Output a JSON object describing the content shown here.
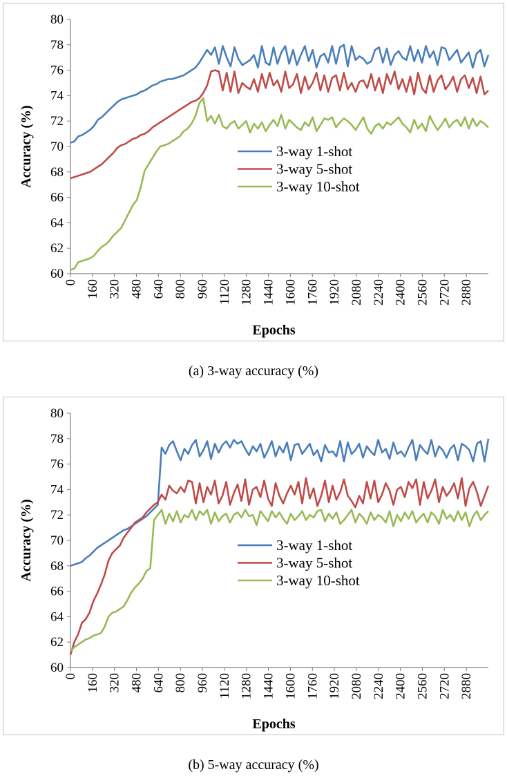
{
  "chart_data": [
    {
      "id": "a",
      "type": "line",
      "caption": "(a)  3-way accuracy (%)",
      "xlabel": "Epochs",
      "ylabel": "Accuracy (%)",
      "ylim": [
        60,
        80
      ],
      "yticks": [
        "60",
        "62",
        "64",
        "66",
        "68",
        "70",
        "72",
        "74",
        "76",
        "78",
        "80"
      ],
      "xlim": [
        0,
        3040
      ],
      "xticks": [
        "0",
        "160",
        "320",
        "480",
        "640",
        "800",
        "960",
        "1120",
        "1280",
        "1440",
        "1600",
        "1760",
        "1920",
        "2080",
        "2240",
        "2400",
        "2560",
        "2720",
        "2880"
      ],
      "grid": "none",
      "legend": "center-right",
      "series": [
        {
          "name": "3-way 1-shot",
          "color": "#4a7ebb",
          "values": [
            70.3,
            70.4,
            70.8,
            70.9,
            71.1,
            71.3,
            71.6,
            72.1,
            72.3,
            72.6,
            72.9,
            73.2,
            73.5,
            73.7,
            73.8,
            73.9,
            74.0,
            74.1,
            74.3,
            74.4,
            74.6,
            74.8,
            74.9,
            75.1,
            75.2,
            75.3,
            75.3,
            75.4,
            75.5,
            75.6,
            75.8,
            76.0,
            76.2,
            76.6,
            77.1,
            77.6,
            77.2,
            77.8,
            76.5,
            77.9,
            77.0,
            76.3,
            77.8,
            76.9,
            76.4,
            76.6,
            76.8,
            77.2,
            76.2,
            77.9,
            76.6,
            76.4,
            77.8,
            76.5,
            77.4,
            77.9,
            76.5,
            77.6,
            76.4,
            77.2,
            77.9,
            76.7,
            77.6,
            76.2,
            77.1,
            77.3,
            76.6,
            77.9,
            76.5,
            77.8,
            78.0,
            76.3,
            77.9,
            76.8,
            77.1,
            76.9,
            76.5,
            76.7,
            77.6,
            77.8,
            76.6,
            77.7,
            76.4,
            77.2,
            77.5,
            77.0,
            76.8,
            77.9,
            76.7,
            77.6,
            76.6,
            77.9,
            77.0,
            77.5,
            76.4,
            77.8,
            77.7,
            76.8,
            77.2,
            77.6,
            76.6,
            77.0,
            77.4,
            76.2,
            77.3,
            77.6,
            76.3,
            77.2
          ]
        },
        {
          "name": "3-way 5-shot",
          "color": "#be4b48",
          "values": [
            67.5,
            67.6,
            67.7,
            67.8,
            67.9,
            68.0,
            68.2,
            68.4,
            68.6,
            68.9,
            69.2,
            69.5,
            69.9,
            70.1,
            70.2,
            70.4,
            70.6,
            70.7,
            70.9,
            71.0,
            71.2,
            71.5,
            71.7,
            71.9,
            72.1,
            72.3,
            72.5,
            72.7,
            72.9,
            73.1,
            73.3,
            73.5,
            73.6,
            73.8,
            74.2,
            74.8,
            75.9,
            76.0,
            75.9,
            74.4,
            75.8,
            74.3,
            75.9,
            74.2,
            75.0,
            74.7,
            74.5,
            75.3,
            74.3,
            75.7,
            74.6,
            75.8,
            74.8,
            75.2,
            74.3,
            75.9,
            74.6,
            74.9,
            75.7,
            74.2,
            75.5,
            74.5,
            75.0,
            75.8,
            74.4,
            75.6,
            74.3,
            75.4,
            75.6,
            74.4,
            75.8,
            74.5,
            75.0,
            74.3,
            75.1,
            75.2,
            74.6,
            75.7,
            74.4,
            75.4,
            74.2,
            75.7,
            74.9,
            75.9,
            74.5,
            75.3,
            74.3,
            75.5,
            74.1,
            75.8,
            74.6,
            74.2,
            75.6,
            74.3,
            75.2,
            75.6,
            74.5,
            74.9,
            75.5,
            74.3,
            75.3,
            75.6,
            74.6,
            75.4,
            74.2,
            75.5,
            74.1,
            74.4
          ]
        },
        {
          "name": "3-way 10-shot",
          "color": "#98b954",
          "values": [
            60.3,
            60.4,
            60.9,
            61.0,
            61.1,
            61.2,
            61.4,
            61.8,
            62.1,
            62.3,
            62.6,
            63.0,
            63.3,
            63.6,
            64.2,
            64.8,
            65.4,
            65.8,
            66.8,
            68.1,
            68.6,
            69.1,
            69.6,
            70.0,
            70.1,
            70.2,
            70.4,
            70.6,
            70.8,
            71.2,
            71.4,
            71.8,
            72.4,
            73.4,
            73.8,
            72.0,
            72.4,
            71.8,
            72.5,
            71.6,
            71.4,
            71.8,
            72.0,
            71.4,
            71.7,
            72.0,
            71.1,
            71.8,
            71.4,
            71.9,
            71.2,
            71.7,
            72.1,
            71.6,
            72.5,
            71.4,
            72.1,
            71.8,
            71.5,
            71.3,
            71.9,
            71.6,
            72.3,
            71.2,
            71.7,
            72.2,
            72.1,
            72.3,
            71.5,
            71.9,
            72.2,
            72.0,
            71.7,
            71.3,
            71.8,
            72.3,
            71.4,
            71.0,
            71.6,
            71.8,
            71.4,
            71.9,
            71.7,
            72.0,
            72.3,
            71.8,
            71.5,
            71.1,
            72.1,
            71.4,
            71.8,
            71.2,
            72.4,
            71.8,
            71.3,
            71.7,
            72.2,
            71.5,
            71.9,
            72.1,
            71.6,
            72.3,
            71.4,
            72.2,
            71.6,
            72.0,
            71.8,
            71.5
          ]
        }
      ]
    },
    {
      "id": "b",
      "type": "line",
      "caption": "(b)  5-way accuracy (%)",
      "xlabel": "Epochs",
      "ylabel": "Accuracy (%)",
      "ylim": [
        60,
        80
      ],
      "yticks": [
        "60",
        "62",
        "64",
        "66",
        "68",
        "70",
        "72",
        "74",
        "76",
        "78",
        "80"
      ],
      "xlim": [
        0,
        3040
      ],
      "xticks": [
        "0",
        "160",
        "320",
        "480",
        "640",
        "800",
        "960",
        "1120",
        "1280",
        "1440",
        "1600",
        "1760",
        "1920",
        "2080",
        "2240",
        "2400",
        "2560",
        "2720",
        "2880"
      ],
      "grid": "none",
      "legend": "center-right",
      "series": [
        {
          "name": "3-way 1-shot",
          "color": "#4a7ebb",
          "values": [
            68.0,
            68.1,
            68.2,
            68.3,
            68.6,
            68.8,
            69.1,
            69.4,
            69.6,
            69.8,
            70.0,
            70.2,
            70.4,
            70.6,
            70.8,
            70.9,
            71.1,
            71.3,
            71.5,
            71.7,
            71.9,
            72.2,
            72.5,
            72.8,
            77.3,
            76.8,
            77.5,
            77.8,
            77.0,
            76.3,
            77.2,
            76.8,
            77.5,
            77.9,
            76.6,
            77.1,
            77.8,
            76.4,
            77.6,
            76.9,
            77.5,
            77.8,
            77.3,
            77.9,
            77.6,
            77.8,
            77.2,
            76.7,
            77.4,
            77.0,
            77.6,
            76.5,
            77.1,
            77.8,
            76.6,
            77.4,
            76.9,
            77.7,
            76.3,
            77.5,
            77.6,
            76.8,
            77.2,
            77.6,
            76.7,
            77.1,
            76.2,
            77.5,
            76.9,
            77.0,
            76.6,
            77.8,
            76.2,
            77.7,
            76.8,
            77.1,
            77.6,
            76.5,
            77.4,
            77.0,
            76.7,
            77.9,
            76.9,
            77.2,
            76.4,
            77.7,
            76.8,
            77.0,
            76.6,
            77.3,
            77.9,
            76.3,
            77.5,
            77.1,
            76.8,
            77.9,
            76.6,
            77.4,
            77.1,
            76.5,
            77.2,
            77.5,
            76.3,
            77.6,
            77.4,
            77.1,
            76.2,
            77.6,
            77.8,
            76.2,
            78.0
          ]
        },
        {
          "name": "3-way 5-shot",
          "color": "#be4b48",
          "values": [
            61.0,
            62.0,
            62.6,
            63.5,
            63.8,
            64.3,
            65.2,
            65.8,
            66.5,
            67.3,
            68.4,
            69.0,
            69.3,
            69.6,
            70.2,
            70.6,
            71.0,
            71.4,
            71.6,
            71.8,
            72.2,
            72.5,
            72.8,
            73.0,
            73.6,
            73.2,
            74.3,
            73.9,
            73.7,
            74.2,
            73.8,
            74.7,
            74.6,
            72.9,
            74.5,
            73.0,
            74.2,
            73.6,
            74.7,
            72.9,
            73.5,
            74.6,
            72.8,
            73.7,
            74.4,
            73.1,
            74.8,
            72.8,
            74.0,
            74.2,
            73.4,
            74.7,
            73.3,
            72.7,
            74.5,
            73.5,
            72.9,
            73.7,
            74.3,
            73.6,
            74.6,
            72.9,
            74.9,
            73.3,
            74.1,
            72.7,
            73.5,
            74.7,
            73.0,
            74.3,
            73.2,
            73.8,
            74.8,
            73.5,
            73.1,
            72.6,
            73.5,
            72.9,
            74.6,
            73.3,
            74.7,
            73.0,
            73.6,
            74.5,
            73.9,
            72.8,
            74.0,
            74.2,
            73.4,
            74.6,
            74.1,
            74.8,
            72.8,
            74.6,
            73.3,
            73.9,
            74.8,
            73.0,
            74.2,
            73.5,
            73.9,
            74.5,
            73.3,
            74.9,
            72.7,
            74.1,
            74.6,
            73.8,
            72.7,
            73.5,
            74.3
          ]
        },
        {
          "name": "3-way 10-shot",
          "color": "#98b954",
          "values": [
            61.3,
            61.6,
            61.8,
            62.0,
            62.2,
            62.3,
            62.5,
            62.6,
            62.7,
            63.2,
            64.0,
            64.3,
            64.4,
            64.6,
            64.8,
            65.3,
            65.9,
            66.3,
            66.6,
            67.0,
            67.6,
            67.8,
            71.6,
            72.0,
            72.4,
            71.3,
            72.1,
            71.5,
            72.3,
            71.4,
            72.0,
            71.8,
            72.4,
            71.6,
            72.3,
            72.0,
            72.4,
            71.3,
            72.2,
            71.5,
            71.9,
            72.1,
            71.4,
            72.0,
            72.2,
            71.8,
            72.4,
            71.9,
            72.0,
            71.2,
            72.3,
            71.9,
            71.5,
            72.3,
            71.8,
            72.2,
            71.7,
            71.3,
            72.1,
            71.6,
            71.9,
            72.3,
            71.6,
            72.0,
            71.8,
            72.3,
            72.4,
            71.5,
            72.1,
            71.7,
            72.2,
            71.3,
            71.6,
            72.0,
            72.4,
            71.4,
            72.1,
            71.8,
            71.3,
            72.2,
            71.6,
            72.0,
            71.8,
            71.4,
            72.3,
            71.1,
            72.0,
            71.5,
            72.2,
            71.7,
            72.3,
            71.4,
            71.8,
            72.1,
            71.4,
            72.2,
            71.9,
            71.3,
            72.4,
            71.7,
            72.0,
            71.5,
            72.3,
            71.6,
            72.2,
            71.1,
            71.9,
            72.3,
            71.6,
            72.0,
            72.3
          ]
        }
      ]
    }
  ]
}
